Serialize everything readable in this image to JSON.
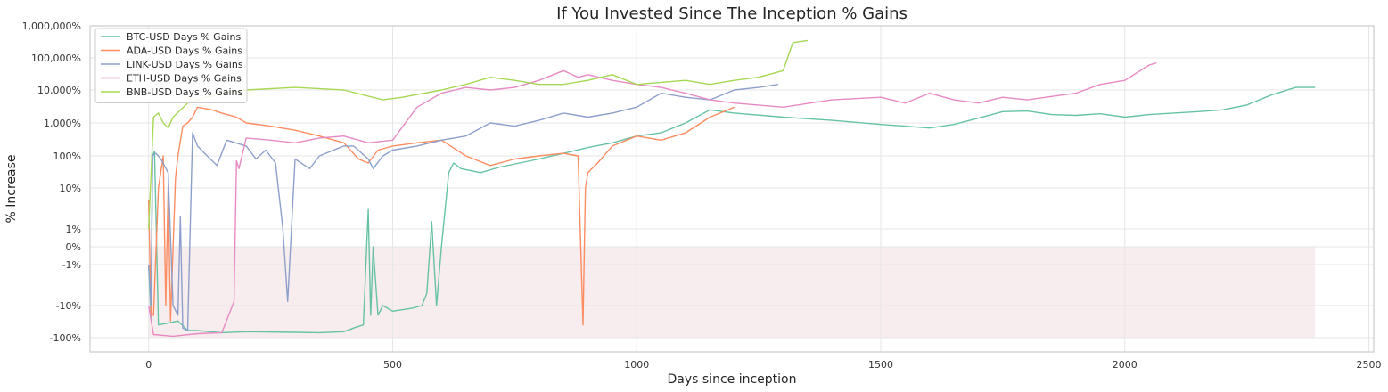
{
  "chart_data": {
    "type": "line",
    "title": "If You Invested Since The Inception % Gains",
    "xlabel": "Days since inception",
    "ylabel": "% Increase",
    "xlim": [
      -120,
      2510
    ],
    "x_ticks": [
      0,
      500,
      1000,
      1500,
      2000,
      2500
    ],
    "y_scale": "symlog",
    "y_ticks": [
      {
        "value": -100,
        "label": "-100%"
      },
      {
        "value": -10,
        "label": "-10%"
      },
      {
        "value": -1,
        "label": "-1%"
      },
      {
        "value": 0,
        "label": "0%"
      },
      {
        "value": 1,
        "label": "1%"
      },
      {
        "value": 10,
        "label": "10%"
      },
      {
        "value": 100,
        "label": "100%"
      },
      {
        "value": 1000,
        "label": "1,000%"
      },
      {
        "value": 10000,
        "label": "10,000%"
      },
      {
        "value": 100000,
        "label": "100,000%"
      },
      {
        "value": 1000000,
        "label": "1,000,000%"
      }
    ],
    "grid": true,
    "legend_position": "top-left",
    "loss_region": {
      "x": [
        0,
        2390
      ],
      "y": [
        -100,
        0
      ],
      "color": "#f6e8ea"
    },
    "series": [
      {
        "name": "BTC-USD Days % Gains",
        "color": "#66c2a5",
        "x": [
          0,
          5,
          8,
          12,
          20,
          40,
          60,
          80,
          100,
          150,
          200,
          300,
          350,
          400,
          420,
          440,
          450,
          455,
          460,
          470,
          480,
          500,
          540,
          560,
          570,
          580,
          590,
          600,
          615,
          625,
          640,
          680,
          720,
          760,
          800,
          850,
          900,
          950,
          1000,
          1050,
          1100,
          1150,
          1200,
          1300,
          1400,
          1500,
          1550,
          1600,
          1650,
          1700,
          1750,
          1800,
          1850,
          1900,
          1950,
          2000,
          2050,
          2100,
          2150,
          2200,
          2250,
          2300,
          2350,
          2390
        ],
        "y": [
          -1,
          -25,
          100,
          140,
          -40,
          -35,
          -30,
          -60,
          -60,
          -70,
          -65,
          -68,
          -70,
          -65,
          -50,
          -40,
          3,
          -20,
          0,
          -20,
          -10,
          -15,
          -12,
          -10,
          -5,
          1.5,
          -10,
          0,
          30,
          60,
          40,
          30,
          45,
          60,
          80,
          120,
          180,
          250,
          400,
          500,
          1000,
          2500,
          2000,
          1500,
          1200,
          900,
          800,
          700,
          900,
          1400,
          2200,
          2300,
          1800,
          1700,
          1900,
          1500,
          1800,
          2000,
          2200,
          2500,
          3500,
          7000,
          12000,
          12000
        ]
      },
      {
        "name": "ADA-USD Days % Gains",
        "color": "#fc8d62",
        "x": [
          0,
          5,
          10,
          20,
          30,
          35,
          40,
          45,
          55,
          60,
          70,
          80,
          90,
          100,
          130,
          150,
          180,
          200,
          250,
          300,
          350,
          400,
          430,
          450,
          470,
          500,
          550,
          600,
          650,
          700,
          750,
          800,
          850,
          880,
          890,
          895,
          900,
          920,
          950,
          1000,
          1050,
          1100,
          1150,
          1200
        ],
        "y": [
          5,
          -20,
          -20,
          10,
          100,
          -10,
          10,
          -30,
          20,
          100,
          800,
          1000,
          1500,
          3000,
          2500,
          2000,
          1500,
          1000,
          800,
          600,
          400,
          250,
          80,
          60,
          150,
          200,
          250,
          300,
          100,
          50,
          80,
          100,
          120,
          100,
          -40,
          10,
          30,
          60,
          200,
          400,
          300,
          500,
          1500,
          3000
        ]
      },
      {
        "name": "LINK-USD Days % Gains",
        "color": "#8da0cb",
        "x": [
          0,
          5,
          8,
          15,
          25,
          40,
          50,
          60,
          65,
          70,
          80,
          90,
          100,
          120,
          140,
          160,
          200,
          220,
          240,
          260,
          275,
          285,
          300,
          330,
          350,
          400,
          420,
          450,
          460,
          480,
          500,
          550,
          600,
          650,
          700,
          750,
          800,
          850,
          900,
          950,
          1000,
          1050,
          1100,
          1150,
          1200,
          1250,
          1290
        ],
        "y": [
          -1,
          -10,
          100,
          120,
          80,
          30,
          -10,
          -20,
          2,
          -50,
          -60,
          500,
          200,
          100,
          50,
          300,
          200,
          80,
          150,
          60,
          1,
          -8,
          80,
          40,
          100,
          200,
          200,
          80,
          40,
          100,
          150,
          200,
          300,
          400,
          1000,
          800,
          1200,
          2000,
          1500,
          2000,
          3000,
          8000,
          6000,
          5000,
          10000,
          12000,
          15000
        ]
      },
      {
        "name": "ETH-USD Days % Gains",
        "color": "#e78ac3",
        "x": [
          0,
          10,
          50,
          100,
          150,
          175,
          180,
          185,
          200,
          250,
          300,
          350,
          400,
          450,
          500,
          550,
          600,
          650,
          700,
          750,
          800,
          850,
          880,
          900,
          950,
          1000,
          1050,
          1100,
          1150,
          1200,
          1300,
          1400,
          1500,
          1550,
          1600,
          1650,
          1700,
          1750,
          1800,
          1900,
          1950,
          2000,
          2050,
          2065
        ],
        "y": [
          -10,
          -80,
          -90,
          -75,
          -70,
          -8,
          70,
          40,
          350,
          300,
          250,
          350,
          400,
          250,
          300,
          3000,
          8000,
          12000,
          10000,
          12000,
          20000,
          40000,
          25000,
          30000,
          20000,
          15000,
          12000,
          8000,
          5000,
          4000,
          3000,
          5000,
          6000,
          4000,
          8000,
          5000,
          4000,
          6000,
          5000,
          8000,
          15000,
          20000,
          60000,
          70000
        ]
      },
      {
        "name": "BNB-USD Days % Gains",
        "color": "#a6d854",
        "x": [
          0,
          10,
          20,
          30,
          40,
          50,
          80,
          120,
          150,
          200,
          300,
          400,
          480,
          520,
          600,
          650,
          700,
          750,
          800,
          850,
          900,
          950,
          1000,
          1100,
          1150,
          1200,
          1250,
          1300,
          1320,
          1350
        ],
        "y": [
          1,
          1500,
          2000,
          1000,
          700,
          1500,
          4000,
          6000,
          8000,
          10000,
          12000,
          10000,
          5000,
          6000,
          10000,
          15000,
          25000,
          20000,
          15000,
          15000,
          20000,
          30000,
          15000,
          20000,
          15000,
          20000,
          25000,
          40000,
          300000,
          350000
        ]
      }
    ]
  }
}
